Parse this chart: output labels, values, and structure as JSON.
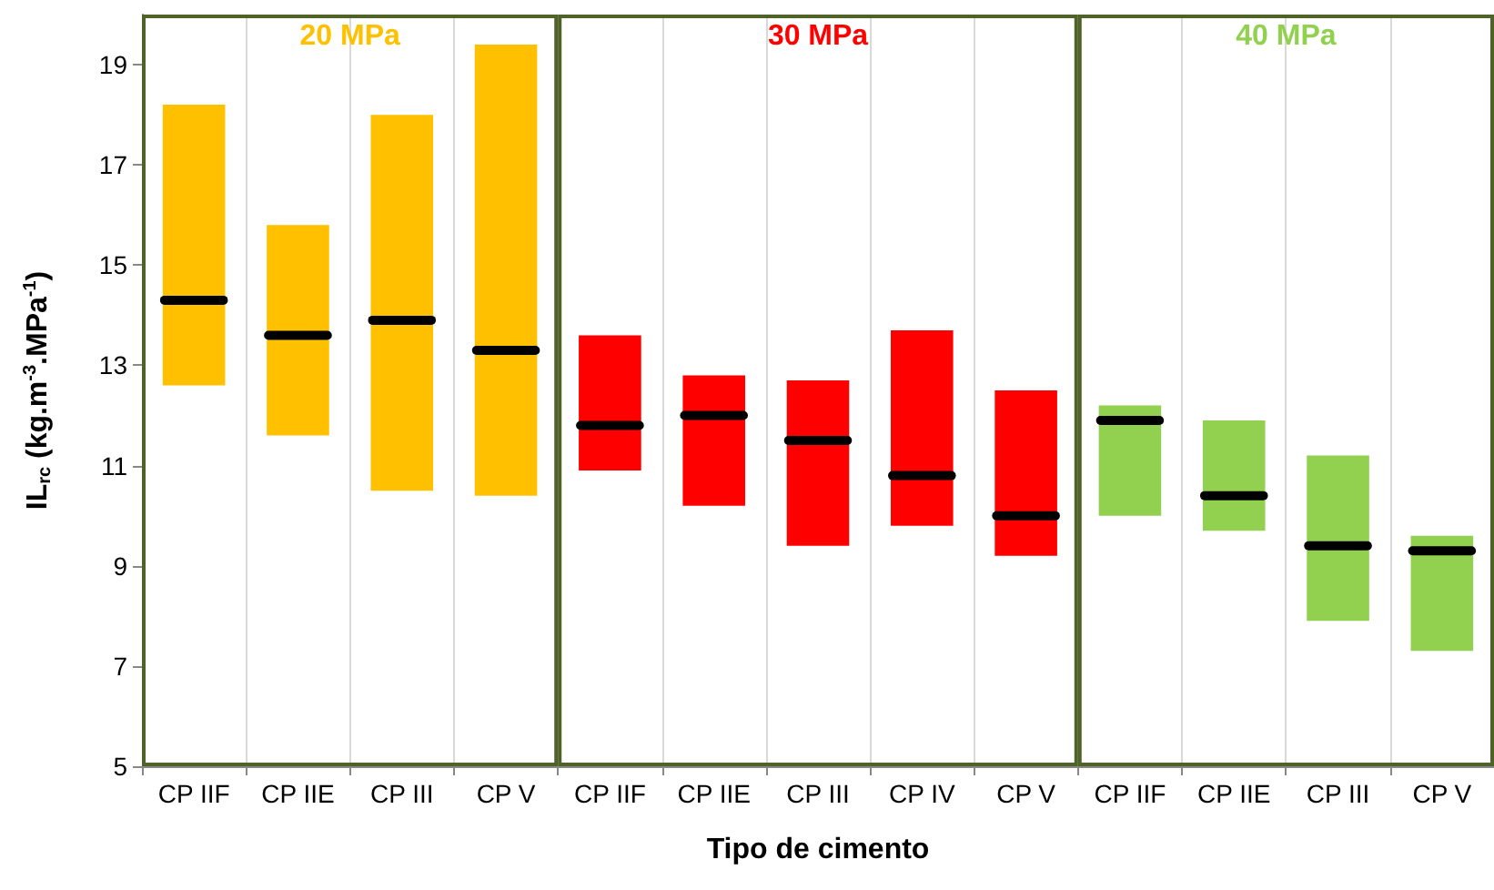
{
  "chart_data": {
    "type": "box",
    "xlabel": "Tipo de cimento",
    "ylabel": "IL$_{rc}$ (kg.m$^{-3}$.MPa$^{-1}$)",
    "categories": [
      "CP IIF",
      "CP IIE",
      "CP III",
      "CP V",
      "CP IIF",
      "CP IIE",
      "CP III",
      "CP IV",
      "CP V",
      "CP IIF",
      "CP IIE",
      "CP III",
      "CP V"
    ],
    "ylim": [
      5,
      20
    ],
    "yticks": [
      5,
      7,
      9,
      11,
      13,
      15,
      17,
      19
    ],
    "grid": "x",
    "legend": false,
    "series": [
      {
        "name": "20 MPa",
        "color": "#ffc000",
        "boxes": [
          {
            "low": 12.6,
            "q1": 12.6,
            "median": 14.3,
            "q3": 18.2,
            "high": 18.2
          },
          {
            "low": 11.6,
            "q1": 11.6,
            "median": 13.6,
            "q3": 15.8,
            "high": 15.8
          },
          {
            "low": 10.5,
            "q1": 10.5,
            "median": 13.9,
            "q3": 18.0,
            "high": 18.0
          },
          {
            "low": 10.4,
            "q1": 10.4,
            "median": 13.3,
            "q3": 19.4,
            "high": 19.4
          },
          null,
          null,
          null,
          null,
          null,
          null,
          null,
          null,
          null
        ]
      },
      {
        "name": "30 MPa",
        "color": "#ff0000",
        "boxes": [
          null,
          null,
          null,
          null,
          {
            "low": 10.9,
            "q1": 10.9,
            "median": 11.8,
            "q3": 13.6,
            "high": 13.6
          },
          {
            "low": 10.2,
            "q1": 10.2,
            "median": 12.0,
            "q3": 12.8,
            "high": 12.8
          },
          {
            "low": 9.4,
            "q1": 9.4,
            "median": 11.5,
            "q3": 12.7,
            "high": 12.7
          },
          {
            "low": 9.8,
            "q1": 9.8,
            "median": 10.8,
            "q3": 13.7,
            "high": 13.7
          },
          {
            "low": 9.2,
            "q1": 9.2,
            "median": 10.0,
            "q3": 12.5,
            "high": 12.5
          },
          null,
          null,
          null,
          null
        ]
      },
      {
        "name": "40 MPa",
        "color": "#92d050",
        "boxes": [
          null,
          null,
          null,
          null,
          null,
          null,
          null,
          null,
          null,
          {
            "low": 10.0,
            "q1": 10.0,
            "median": 11.9,
            "q3": 12.2,
            "high": 12.2
          },
          {
            "low": 9.7,
            "q1": 9.7,
            "median": 10.4,
            "q3": 11.9,
            "high": 11.9
          },
          {
            "low": 7.9,
            "q1": 7.9,
            "median": 9.4,
            "q3": 11.2,
            "high": 11.2
          },
          {
            "low": 7.3,
            "q1": 7.3,
            "median": 9.3,
            "q3": 9.6,
            "high": 9.6
          }
        ]
      }
    ]
  }
}
